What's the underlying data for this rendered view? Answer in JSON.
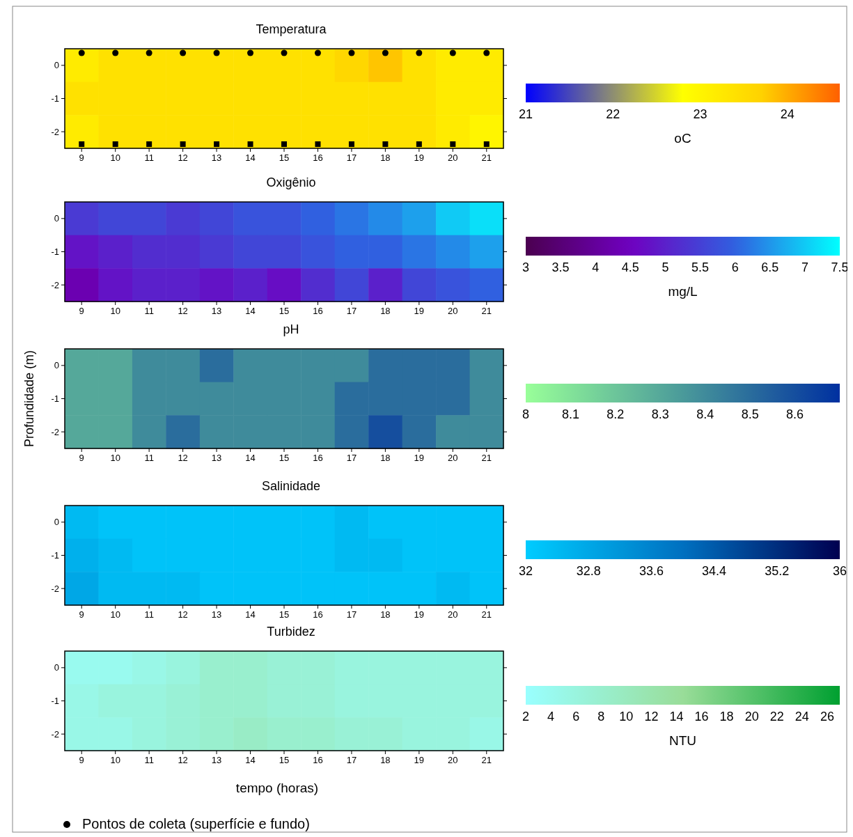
{
  "chart_data": [
    {
      "type": "heatmap",
      "title": "Temperatura",
      "clabel": "oC",
      "clim": [
        21,
        24.6
      ],
      "cticks": [
        21,
        22,
        23,
        24
      ],
      "categories": [
        "9",
        "10",
        "11",
        "12",
        "13",
        "14",
        "15",
        "16",
        "17",
        "18",
        "19",
        "20",
        "21"
      ],
      "y_categories": [
        "0",
        "-1",
        "-2"
      ],
      "cells": [
        [
          23.2,
          23.4,
          23.4,
          23.4,
          23.4,
          23.4,
          23.4,
          23.4,
          23.6,
          23.8,
          23.4,
          23.2,
          23.2
        ],
        [
          23.4,
          23.4,
          23.4,
          23.4,
          23.4,
          23.4,
          23.4,
          23.4,
          23.4,
          23.4,
          23.4,
          23.2,
          23.2
        ],
        [
          23.2,
          23.4,
          23.4,
          23.4,
          23.4,
          23.4,
          23.4,
          23.4,
          23.4,
          23.4,
          23.4,
          23.2,
          23.0
        ]
      ],
      "annotations": [
        "Pontos de coleta (superfície e fundo)"
      ]
    },
    {
      "type": "heatmap",
      "title": "Oxigênio",
      "clabel": "mg/L",
      "clim": [
        3,
        7.5
      ],
      "cticks": [
        3,
        3.5,
        4,
        4.5,
        5,
        5.5,
        6,
        6.5,
        7,
        7.5
      ],
      "categories": [
        "9",
        "10",
        "11",
        "12",
        "13",
        "14",
        "15",
        "16",
        "17",
        "18",
        "19",
        "20",
        "21"
      ],
      "y_categories": [
        "0",
        "-1",
        "-2"
      ],
      "cells": [
        [
          5.4,
          5.6,
          5.6,
          5.4,
          5.6,
          5.8,
          5.8,
          6.0,
          6.2,
          6.4,
          6.6,
          7.0,
          7.2
        ],
        [
          4.8,
          5.0,
          5.2,
          5.2,
          5.4,
          5.6,
          5.6,
          5.8,
          6.0,
          6.0,
          6.2,
          6.4,
          6.6
        ],
        [
          4.3,
          4.8,
          5.0,
          5.0,
          4.8,
          5.0,
          4.7,
          5.2,
          5.6,
          5.0,
          5.6,
          5.8,
          6.0
        ]
      ]
    },
    {
      "type": "heatmap",
      "title": "pH",
      "ylabel": "Profundidade (m)",
      "clim": [
        8,
        8.7
      ],
      "cticks": [
        8,
        8.1,
        8.2,
        8.3,
        8.4,
        8.5,
        8.6
      ],
      "categories": [
        "9",
        "10",
        "11",
        "12",
        "13",
        "14",
        "15",
        "16",
        "17",
        "18",
        "19",
        "20",
        "21"
      ],
      "y_categories": [
        "0",
        "-1",
        "-2"
      ],
      "cells": [
        [
          8.3,
          8.3,
          8.4,
          8.4,
          8.5,
          8.4,
          8.4,
          8.4,
          8.4,
          8.5,
          8.5,
          8.5,
          8.4
        ],
        [
          8.3,
          8.3,
          8.4,
          8.4,
          8.4,
          8.4,
          8.4,
          8.4,
          8.5,
          8.5,
          8.5,
          8.5,
          8.4
        ],
        [
          8.3,
          8.3,
          8.4,
          8.5,
          8.4,
          8.4,
          8.4,
          8.4,
          8.5,
          8.6,
          8.5,
          8.4,
          8.4
        ]
      ]
    },
    {
      "type": "heatmap",
      "title": "Salinidade",
      "clim": [
        32,
        36
      ],
      "cticks": [
        32,
        32.8,
        33.6,
        34.4,
        35.2,
        36
      ],
      "categories": [
        "9",
        "10",
        "11",
        "12",
        "13",
        "14",
        "15",
        "16",
        "17",
        "18",
        "19",
        "20",
        "21"
      ],
      "y_categories": [
        "0",
        "-1",
        "-2"
      ],
      "cells": [
        [
          32.4,
          32.2,
          32.2,
          32.2,
          32.2,
          32.2,
          32.2,
          32.2,
          32.4,
          32.2,
          32.2,
          32.2,
          32.2
        ],
        [
          32.6,
          32.4,
          32.2,
          32.2,
          32.2,
          32.2,
          32.2,
          32.2,
          32.4,
          32.4,
          32.2,
          32.2,
          32.2
        ],
        [
          32.8,
          32.4,
          32.4,
          32.4,
          32.2,
          32.2,
          32.2,
          32.2,
          32.2,
          32.2,
          32.2,
          32.4,
          32.2
        ]
      ]
    },
    {
      "type": "heatmap",
      "title": "Turbidez",
      "clabel": "NTU",
      "xlabel": "tempo (horas)",
      "clim": [
        2,
        27
      ],
      "cticks": [
        2,
        4,
        6,
        8,
        10,
        12,
        14,
        16,
        18,
        20,
        22,
        24,
        26
      ],
      "categories": [
        "9",
        "10",
        "11",
        "12",
        "13",
        "14",
        "15",
        "16",
        "17",
        "18",
        "19",
        "20",
        "21"
      ],
      "y_categories": [
        "0",
        "-1",
        "-2"
      ],
      "cells": [
        [
          4,
          4,
          5,
          6,
          8,
          8,
          7,
          7,
          6,
          6,
          6,
          6,
          6
        ],
        [
          5,
          6,
          6,
          7,
          8,
          8,
          7,
          7,
          6,
          6,
          6,
          6,
          6
        ],
        [
          5,
          5,
          6,
          7,
          8,
          9,
          8,
          8,
          7,
          7,
          6,
          6,
          5
        ]
      ]
    }
  ]
}
